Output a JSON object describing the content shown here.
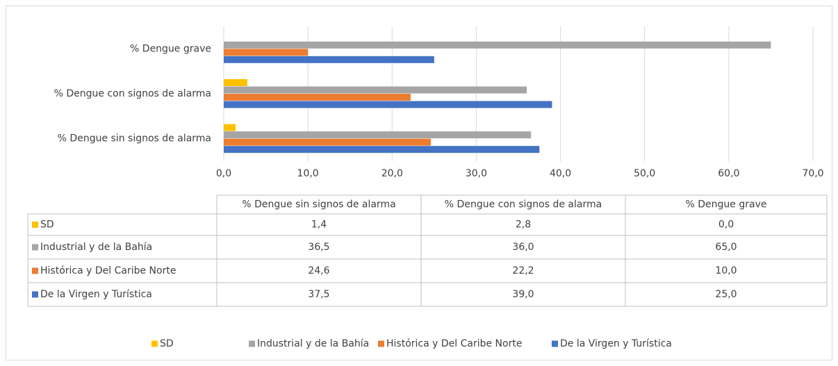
{
  "chart_data": {
    "type": "bar",
    "orientation": "horizontal",
    "categories": [
      "% Dengue sin signos de alarma",
      "% Dengue con signos de alarma",
      "% Dengue grave"
    ],
    "series": [
      {
        "name": "SD",
        "color": "#ffc000",
        "values": [
          1.4,
          2.8,
          0.0
        ],
        "value_labels": [
          "1,4",
          "2,8",
          "0,0"
        ]
      },
      {
        "name": "Industrial y de la Bahía",
        "color": "#a5a5a5",
        "values": [
          36.5,
          36.0,
          65.0
        ],
        "value_labels": [
          "36,5",
          "36,0",
          "65,0"
        ]
      },
      {
        "name": "Histórica y Del Caribe Norte",
        "color": "#ed7d31",
        "values": [
          24.6,
          22.2,
          10.0
        ],
        "value_labels": [
          "24,6",
          "22,2",
          "10,0"
        ]
      },
      {
        "name": "De la Virgen y Turística",
        "color": "#4472c4",
        "values": [
          37.5,
          39.0,
          25.0
        ],
        "value_labels": [
          "37,5",
          "39,0",
          "25,0"
        ]
      }
    ],
    "xlim": [
      0,
      70
    ],
    "xticks": [
      {
        "value": 0,
        "label": "0,0"
      },
      {
        "value": 10,
        "label": "10,0"
      },
      {
        "value": 20,
        "label": "20,0"
      },
      {
        "value": 30,
        "label": "30,0"
      },
      {
        "value": 40,
        "label": "40,0"
      },
      {
        "value": 50,
        "label": "50,0"
      },
      {
        "value": 60,
        "label": "60,0"
      },
      {
        "value": 70,
        "label": "70,0"
      }
    ],
    "grid": true,
    "legend": "bottom",
    "data_table": true
  }
}
